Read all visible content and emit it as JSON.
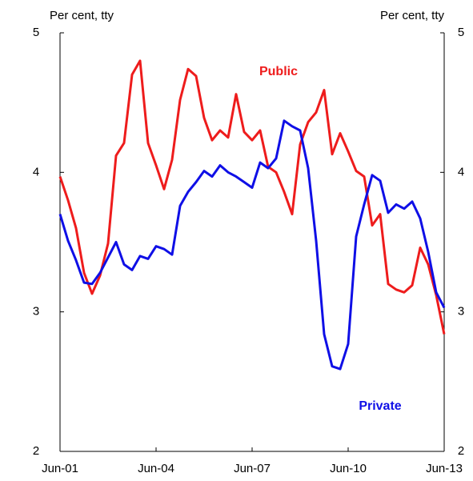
{
  "chart_data": {
    "type": "line",
    "y_label": "Per cent, tty",
    "y2_label": "Per cent, tty",
    "x": [
      2001.5,
      2001.75,
      2002,
      2002.25,
      2002.5,
      2002.75,
      2003,
      2003.25,
      2003.5,
      2003.75,
      2004,
      2004.25,
      2004.5,
      2004.75,
      2005,
      2005.25,
      2005.5,
      2005.75,
      2006,
      2006.25,
      2006.5,
      2006.75,
      2007,
      2007.25,
      2007.5,
      2007.75,
      2008,
      2008.25,
      2008.5,
      2008.75,
      2009,
      2009.25,
      2009.5,
      2009.75,
      2010,
      2010.25,
      2010.5,
      2010.75,
      2011,
      2011.25,
      2011.5,
      2011.75,
      2012,
      2012.25,
      2012.5,
      2012.75,
      2013,
      2013.25,
      2013.5
    ],
    "series": [
      {
        "name": "Public",
        "color": "#ee1c1c",
        "values": [
          3.97,
          3.8,
          3.6,
          3.28,
          3.13,
          3.26,
          3.49,
          4.12,
          4.21,
          4.7,
          4.8,
          4.21,
          4.05,
          3.88,
          4.09,
          4.52,
          4.74,
          4.69,
          4.39,
          4.23,
          4.3,
          4.25,
          4.56,
          4.29,
          4.23,
          4.3,
          4.04,
          4.0,
          3.86,
          3.7,
          4.2,
          4.36,
          4.43,
          4.59,
          4.13,
          4.28,
          4.15,
          4.01,
          3.97,
          3.62,
          3.7,
          3.2,
          3.16,
          3.14,
          3.19,
          3.46,
          3.34,
          3.12,
          2.84
        ]
      },
      {
        "name": "Private",
        "color": "#0f0fe6",
        "values": [
          3.7,
          3.51,
          3.37,
          3.21,
          3.2,
          3.28,
          3.39,
          3.5,
          3.34,
          3.3,
          3.4,
          3.38,
          3.47,
          3.45,
          3.41,
          3.76,
          3.86,
          3.93,
          4.01,
          3.97,
          4.05,
          4.0,
          3.97,
          3.93,
          3.89,
          4.07,
          4.03,
          4.1,
          4.37,
          4.33,
          4.3,
          4.03,
          3.51,
          2.84,
          2.61,
          2.59,
          2.77,
          3.54,
          3.77,
          3.98,
          3.94,
          3.71,
          3.77,
          3.74,
          3.79,
          3.67,
          3.43,
          3.14,
          3.03
        ]
      }
    ],
    "xlim": [
      2001.5,
      2013.5
    ],
    "xticks": [
      {
        "value": 2001.5,
        "label": "Jun-01"
      },
      {
        "value": 2004.5,
        "label": "Jun-04"
      },
      {
        "value": 2007.5,
        "label": "Jun-07"
      },
      {
        "value": 2010.5,
        "label": "Jun-10"
      },
      {
        "value": 2013.5,
        "label": "Jun-13"
      }
    ],
    "ylim": [
      2,
      5
    ],
    "yticks": [
      2,
      3,
      4,
      5
    ],
    "y2lim": [
      2,
      5
    ],
    "y2ticks": [
      2,
      3,
      4,
      5
    ]
  }
}
